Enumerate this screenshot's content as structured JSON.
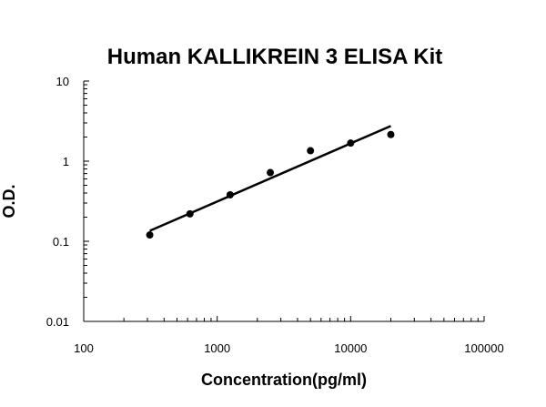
{
  "chart_data": {
    "type": "scatter",
    "title": "Human KALLIKREIN 3 ELISA Kit",
    "xlabel": "Concentration(pg/ml)",
    "ylabel": "O.D.",
    "x_scale": "log",
    "y_scale": "log",
    "xlim": [
      100,
      100000
    ],
    "ylim": [
      0.01,
      10
    ],
    "x_ticks": [
      "100",
      "1000",
      "10000",
      "100000"
    ],
    "y_ticks": [
      "0.01",
      "0.1",
      "1",
      "10"
    ],
    "grid": false,
    "legend": "none",
    "series": [
      {
        "points": [
          {
            "x": 312.5,
            "y": 0.12
          },
          {
            "x": 625,
            "y": 0.22
          },
          {
            "x": 1250,
            "y": 0.38
          },
          {
            "x": 2500,
            "y": 0.72
          },
          {
            "x": 5000,
            "y": 1.35
          },
          {
            "x": 10000,
            "y": 1.68
          },
          {
            "x": 20000,
            "y": 2.15
          }
        ]
      }
    ],
    "trendline": {
      "x": [
        312.5,
        20000
      ],
      "y": [
        0.135,
        2.75
      ]
    }
  },
  "colors": {
    "marker": "#000000",
    "line": "#000000",
    "axis": "#000000"
  }
}
